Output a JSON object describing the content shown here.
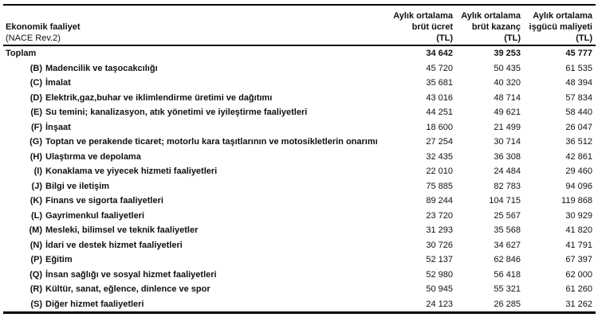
{
  "table": {
    "stub": {
      "line1": "Ekonomik faaliyet",
      "line2": "(NACE Rev.2)"
    },
    "columns": [
      {
        "line1": "Aylık ortalama",
        "line2": "brüt ücret",
        "line3": "(TL)"
      },
      {
        "line1": "Aylık ortalama",
        "line2": "brüt kazanç",
        "line3": "(TL)"
      },
      {
        "line1": "Aylık ortalama",
        "line2": "işgücü maliyeti",
        "line3": "(TL)"
      }
    ],
    "rows": [
      {
        "code": "",
        "label": "Toplam",
        "total": true,
        "values": [
          "34 642",
          "39 253",
          "45 777"
        ]
      },
      {
        "code": "(B)",
        "label": "Madencilik ve taşocakcılığı",
        "total": false,
        "values": [
          "45 720",
          "50 435",
          "61 535"
        ]
      },
      {
        "code": "(C)",
        "label": "İmalat",
        "total": false,
        "values": [
          "35 681",
          "40 320",
          "48 394"
        ]
      },
      {
        "code": "(D)",
        "label": "Elektrik,gaz,buhar ve iklimlendirme üretimi ve dağıtımı",
        "total": false,
        "values": [
          "43 016",
          "48 714",
          "57 834"
        ]
      },
      {
        "code": "(E)",
        "label": "Su temini; kanalizasyon, atık yönetimi ve iyileştirme faaliyetleri",
        "total": false,
        "values": [
          "44 251",
          "49 621",
          "58 440"
        ]
      },
      {
        "code": "(F)",
        "label": "İnşaat",
        "total": false,
        "values": [
          "18 600",
          "21 499",
          "26 047"
        ]
      },
      {
        "code": "(G)",
        "label": "Toptan ve perakende ticaret; motorlu kara taşıtlarının ve motosikletlerin onarımı",
        "total": false,
        "values": [
          "27 254",
          "30 714",
          "36 512"
        ]
      },
      {
        "code": "(H)",
        "label": "Ulaştırma ve depolama",
        "total": false,
        "values": [
          "32 435",
          "36 308",
          "42 861"
        ]
      },
      {
        "code": "(I)",
        "label": "Konaklama ve yiyecek hizmeti faaliyetleri",
        "total": false,
        "values": [
          "22 010",
          "24 484",
          "29 460"
        ]
      },
      {
        "code": "(J)",
        "label": "Bilgi ve iletişim",
        "total": false,
        "values": [
          "75 885",
          "82 783",
          "94 096"
        ]
      },
      {
        "code": "(K)",
        "label": "Finans ve sigorta faaliyetleri",
        "total": false,
        "values": [
          "89 244",
          "104 715",
          "119 868"
        ]
      },
      {
        "code": "(L)",
        "label": "Gayrimenkul faaliyetleri",
        "total": false,
        "values": [
          "23 720",
          "25 567",
          "30 929"
        ]
      },
      {
        "code": "(M)",
        "label": "Mesleki, bilimsel ve teknik faaliyetler",
        "total": false,
        "values": [
          "31 293",
          "35 568",
          "41 820"
        ]
      },
      {
        "code": "(N)",
        "label": "İdari ve destek hizmet faaliyetleri",
        "total": false,
        "values": [
          "30 726",
          "34 627",
          "41 791"
        ]
      },
      {
        "code": "(P)",
        "label": "Eğitim",
        "total": false,
        "values": [
          "52 137",
          "62 846",
          "67 397"
        ]
      },
      {
        "code": "(Q)",
        "label": "İnsan sağlığı ve sosyal hizmet faaliyetleri",
        "total": false,
        "values": [
          "52 980",
          "56 418",
          "62 000"
        ]
      },
      {
        "code": "(R)",
        "label": "Kültür, sanat, eğlence, dinlence ve spor",
        "total": false,
        "values": [
          "50 945",
          "55 321",
          "61 260"
        ]
      },
      {
        "code": "(S)",
        "label": "Diğer hizmet faaliyetleri",
        "total": false,
        "values": [
          "24 123",
          "26 285",
          "31 262"
        ]
      }
    ]
  }
}
